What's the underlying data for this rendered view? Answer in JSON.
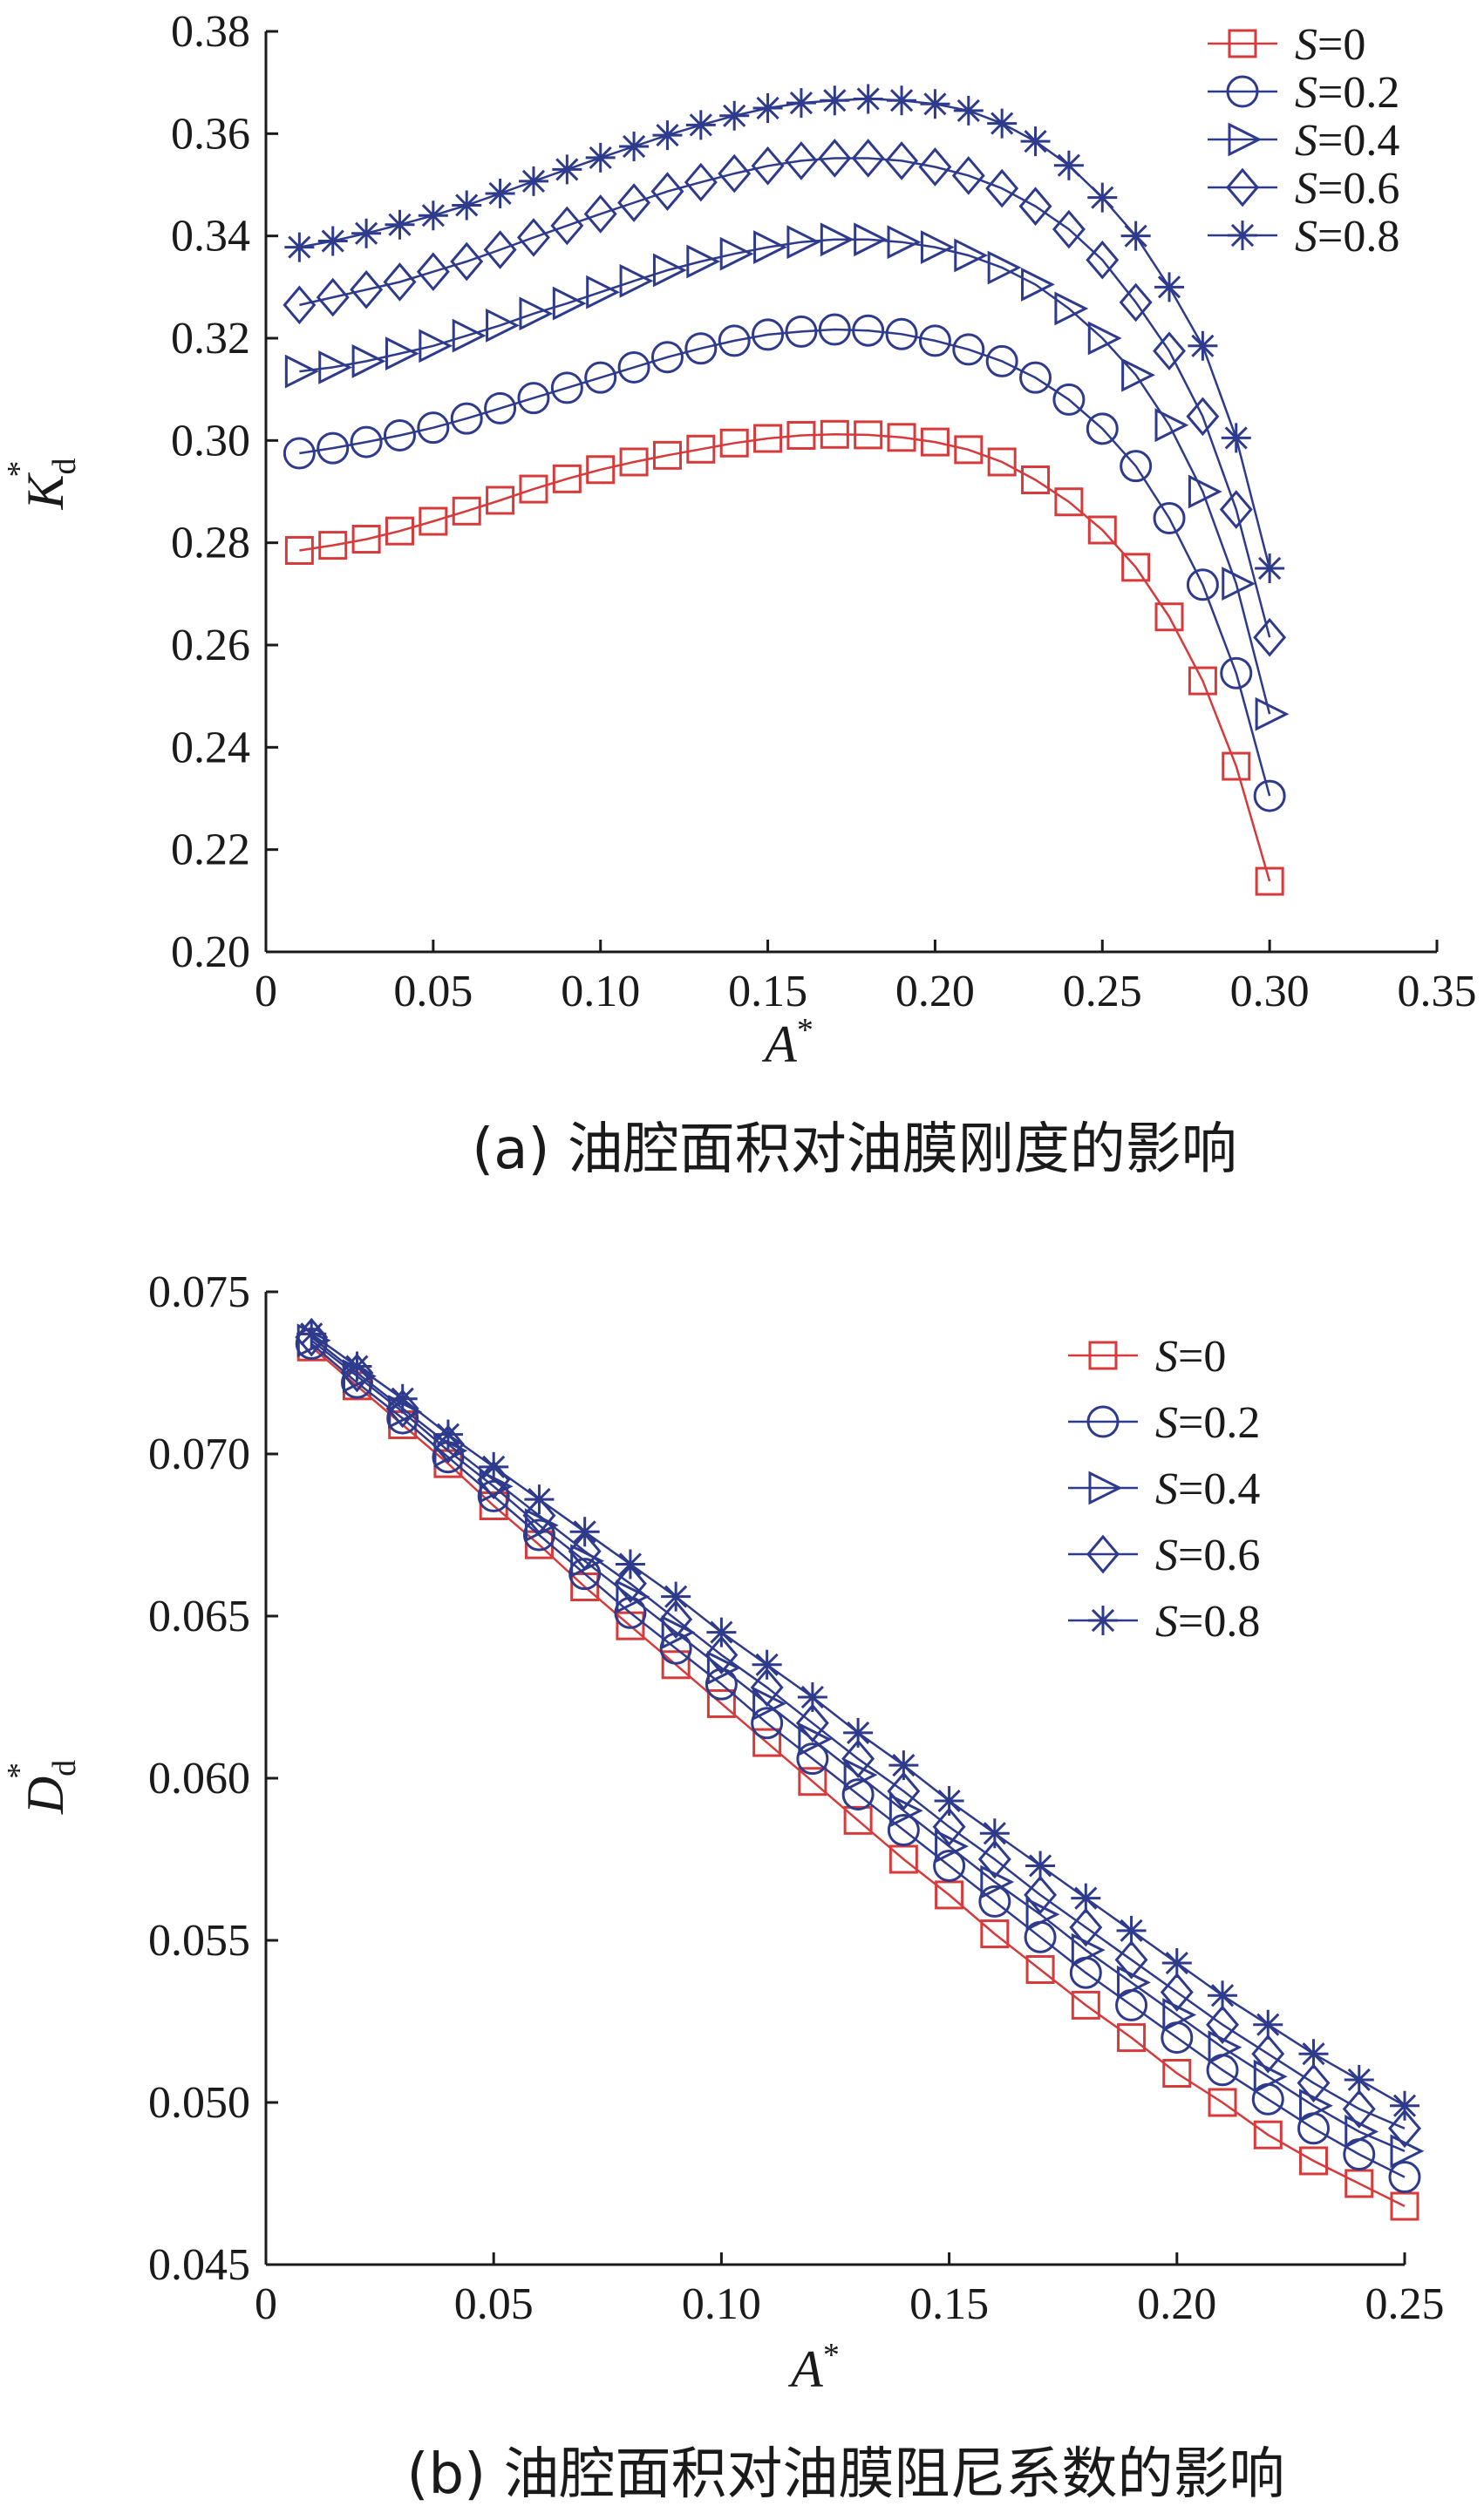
{
  "colors": {
    "s0": "#d63a3a",
    "s_other": "#2e3a8c",
    "axis": "#1a1a1a"
  },
  "charts": [
    {
      "caption": "(a)  油腔面积对油膜刚度的影响",
      "xlabel_main": "A",
      "xlabel_sup": "*",
      "ylabel_main": "K",
      "ylabel_sub": "d",
      "ylabel_sup": "*",
      "xticks": [
        "0",
        "0.05",
        "0.10",
        "0.15",
        "0.20",
        "0.25",
        "0.30",
        "0.35"
      ],
      "yticks": [
        "0.20",
        "0.22",
        "0.24",
        "0.26",
        "0.28",
        "0.30",
        "0.32",
        "0.34",
        "0.36",
        "0.38"
      ]
    },
    {
      "caption": "(b)  油腔面积对油膜阻尼系数的影响",
      "xlabel_main": "A",
      "xlabel_sup": "*",
      "ylabel_main": "D",
      "ylabel_sub": "d",
      "ylabel_sup": "*",
      "xticks": [
        "0",
        "0.05",
        "0.10",
        "0.15",
        "0.20",
        "0.25"
      ],
      "yticks": [
        "0.045",
        "0.050",
        "0.055",
        "0.060",
        "0.065",
        "0.070",
        "0.075"
      ]
    }
  ],
  "chart_data": [
    {
      "type": "line",
      "xlabel": "A*",
      "ylabel": "Kd*",
      "xlim": [
        0,
        0.35
      ],
      "ylim": [
        0.2,
        0.38
      ],
      "legend": "top-right",
      "grid": false,
      "x": [
        0.01,
        0.02,
        0.03,
        0.04,
        0.05,
        0.06,
        0.07,
        0.08,
        0.09,
        0.1,
        0.11,
        0.12,
        0.13,
        0.14,
        0.15,
        0.16,
        0.17,
        0.18,
        0.19,
        0.2,
        0.21,
        0.22,
        0.23,
        0.24,
        0.25,
        0.26,
        0.27,
        0.28,
        0.29,
        0.3
      ],
      "series": [
        {
          "name": "S=0",
          "marker": "square",
          "color": "#d63a3a",
          "values": [
            0.2785,
            0.2795,
            0.2807,
            0.2823,
            0.2842,
            0.2862,
            0.2883,
            0.2905,
            0.2925,
            0.2943,
            0.2958,
            0.2971,
            0.2983,
            0.2995,
            0.3004,
            0.301,
            0.3012,
            0.3011,
            0.3006,
            0.2997,
            0.2982,
            0.2958,
            0.2923,
            0.288,
            0.2825,
            0.2752,
            0.2655,
            0.253,
            0.2363,
            0.2138
          ]
        },
        {
          "name": "S=0.2",
          "marker": "circle",
          "color": "#2e3a8c",
          "values": [
            0.2975,
            0.2985,
            0.2997,
            0.301,
            0.3025,
            0.3043,
            0.3063,
            0.3083,
            0.3103,
            0.3123,
            0.3143,
            0.3163,
            0.318,
            0.3195,
            0.3207,
            0.3213,
            0.3217,
            0.3215,
            0.3208,
            0.3195,
            0.3178,
            0.3155,
            0.3123,
            0.308,
            0.3023,
            0.295,
            0.2848,
            0.2718,
            0.2545,
            0.2305
          ]
        },
        {
          "name": "S=0.4",
          "marker": "triangle-right",
          "color": "#2e3a8c",
          "values": [
            0.3135,
            0.3143,
            0.3155,
            0.317,
            0.3185,
            0.3205,
            0.3225,
            0.3248,
            0.3268,
            0.329,
            0.3312,
            0.3333,
            0.335,
            0.3365,
            0.3378,
            0.3388,
            0.3393,
            0.3393,
            0.3388,
            0.3378,
            0.3362,
            0.3338,
            0.3305,
            0.3258,
            0.32,
            0.3128,
            0.303,
            0.29,
            0.272,
            0.2465
          ]
        },
        {
          "name": "S=0.6",
          "marker": "diamond",
          "color": "#2e3a8c",
          "values": [
            0.3265,
            0.328,
            0.3295,
            0.331,
            0.333,
            0.335,
            0.3373,
            0.3397,
            0.342,
            0.3443,
            0.3465,
            0.3487,
            0.3505,
            0.3522,
            0.3537,
            0.3547,
            0.3552,
            0.3552,
            0.3547,
            0.3535,
            0.3518,
            0.3493,
            0.3458,
            0.3413,
            0.3353,
            0.327,
            0.3175,
            0.3047,
            0.2865,
            0.2615
          ]
        },
        {
          "name": "S=0.8",
          "marker": "star",
          "color": "#2e3a8c",
          "values": [
            0.3378,
            0.339,
            0.3405,
            0.3422,
            0.344,
            0.346,
            0.3483,
            0.3507,
            0.353,
            0.3553,
            0.3575,
            0.3597,
            0.3617,
            0.3635,
            0.365,
            0.366,
            0.3665,
            0.3668,
            0.3665,
            0.3658,
            0.3645,
            0.362,
            0.3585,
            0.3538,
            0.3475,
            0.34,
            0.33,
            0.3185,
            0.3005,
            0.275
          ]
        }
      ]
    },
    {
      "type": "line",
      "xlabel": "A*",
      "ylabel": "Dd*",
      "xlim": [
        0,
        0.25
      ],
      "ylim": [
        0.045,
        0.075
      ],
      "legend": "top-right",
      "grid": false,
      "x": [
        0.01,
        0.02,
        0.03,
        0.04,
        0.05,
        0.06,
        0.07,
        0.08,
        0.09,
        0.1,
        0.11,
        0.12,
        0.13,
        0.14,
        0.15,
        0.16,
        0.17,
        0.18,
        0.19,
        0.2,
        0.21,
        0.22,
        0.23,
        0.24,
        0.25
      ],
      "series": [
        {
          "name": "S=0",
          "marker": "square",
          "color": "#d63a3a",
          "values": [
            0.0733,
            0.0721,
            0.0709,
            0.0697,
            0.0684,
            0.0672,
            0.0659,
            0.0647,
            0.0635,
            0.0623,
            0.0611,
            0.0599,
            0.0587,
            0.0575,
            0.0564,
            0.0552,
            0.0541,
            0.053,
            0.052,
            0.0509,
            0.05,
            0.049,
            0.0482,
            0.0475,
            0.0468
          ]
        },
        {
          "name": "S=0.2",
          "marker": "circle",
          "color": "#2e3a8c",
          "values": [
            0.0734,
            0.0722,
            0.0711,
            0.0699,
            0.0687,
            0.0675,
            0.0663,
            0.0651,
            0.064,
            0.0629,
            0.0617,
            0.0606,
            0.0595,
            0.0584,
            0.0573,
            0.0562,
            0.0551,
            0.054,
            0.053,
            0.052,
            0.051,
            0.0501,
            0.0492,
            0.0484,
            0.0477
          ]
        },
        {
          "name": "S=0.4",
          "marker": "triangle-right",
          "color": "#2e3a8c",
          "values": [
            0.0735,
            0.0724,
            0.0713,
            0.0701,
            0.069,
            0.0678,
            0.0667,
            0.0656,
            0.0645,
            0.0634,
            0.0623,
            0.0612,
            0.0601,
            0.059,
            0.0579,
            0.0568,
            0.0558,
            0.0547,
            0.0537,
            0.0527,
            0.0517,
            0.0508,
            0.0499,
            0.0491,
            0.0485
          ]
        },
        {
          "name": "S=0.6",
          "marker": "diamond",
          "color": "#2e3a8c",
          "values": [
            0.0736,
            0.0725,
            0.0714,
            0.0703,
            0.0692,
            0.0681,
            0.067,
            0.066,
            0.0649,
            0.0638,
            0.0628,
            0.0617,
            0.0606,
            0.0596,
            0.0585,
            0.0575,
            0.0564,
            0.0554,
            0.0544,
            0.0534,
            0.0524,
            0.0515,
            0.0506,
            0.0498,
            0.0492
          ]
        },
        {
          "name": "S=0.8",
          "marker": "star",
          "color": "#2e3a8c",
          "values": [
            0.0737,
            0.0727,
            0.0717,
            0.0706,
            0.0696,
            0.0686,
            0.0676,
            0.0666,
            0.0656,
            0.0645,
            0.0635,
            0.0625,
            0.0614,
            0.0604,
            0.0593,
            0.0583,
            0.0573,
            0.0563,
            0.0553,
            0.0543,
            0.0533,
            0.0524,
            0.0515,
            0.0507,
            0.0499
          ]
        }
      ]
    }
  ]
}
